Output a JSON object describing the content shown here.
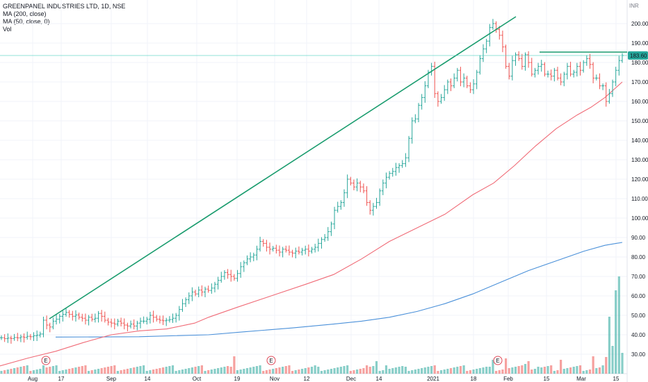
{
  "legend": {
    "title": "GREENPANEL INDUSTRIES LTD, 1D, NSE",
    "ma200": "MA (200, close)",
    "ma50": "MA (50, close, 0)",
    "vol": "Vol"
  },
  "currency_label": "INR",
  "last_price_label": "183.60",
  "colors": {
    "up": "#26a69a",
    "down": "#ef5350",
    "ma50": "#f06b77",
    "ma200": "#4a90d9",
    "trendline": "#1a9c6e",
    "price_line": "#4dd0c0",
    "earnings": "#e04b5a"
  },
  "chart_data": {
    "type": "line",
    "title": "GREENPANEL INDUSTRIES LTD, 1D, NSE",
    "ylim": [
      22,
      205
    ],
    "y_ticks": [
      "30.00",
      "40.00",
      "50.00",
      "60.00",
      "70.00",
      "80.00",
      "90.00",
      "100.00",
      "110.00",
      "120.00",
      "130.00",
      "140.00",
      "150.00",
      "160.00",
      "170.00",
      "180.00",
      "190.00",
      "200.00"
    ],
    "x_ticks": [
      "Aug",
      "17",
      "Sep",
      "14",
      "Oct",
      "19",
      "Nov",
      "12",
      "Dec",
      "14",
      "2021",
      "18",
      "Feb",
      "15",
      "Mar",
      "15"
    ],
    "earnings_markers": [
      "E",
      "E",
      "E"
    ],
    "close_series": [
      38.5,
      38,
      38.3,
      38.1,
      38.6,
      38.4,
      38.9,
      38.7,
      39.2,
      39,
      39.5,
      39.8,
      40.4,
      47.5,
      45,
      44,
      47,
      48,
      49.5,
      50.5,
      51.5,
      50.5,
      49.5,
      50.2,
      49,
      48.5,
      47.5,
      49,
      48,
      48.5,
      51,
      49.5,
      47.5,
      46.5,
      46,
      45.5,
      47,
      46,
      45,
      44.5,
      45.5,
      44.5,
      46,
      47,
      47,
      48,
      50,
      49,
      48,
      47.5,
      47.2,
      47.5,
      47.8,
      48.5,
      50,
      53,
      56,
      58,
      60,
      62,
      61,
      63,
      62,
      63.5,
      62.8,
      64,
      66,
      68,
      70,
      72,
      71,
      70,
      69,
      71.5,
      75,
      77,
      79,
      80,
      81,
      84,
      88,
      87,
      85,
      84,
      84.5,
      83.5,
      82.5,
      84,
      83.5,
      82.5,
      82,
      83,
      82.5,
      83.5,
      84,
      83,
      84,
      85,
      87,
      89,
      90,
      93,
      97,
      104,
      106,
      108,
      113,
      120,
      118,
      116,
      118,
      116,
      114,
      108,
      104,
      106,
      108,
      114,
      118,
      121,
      123,
      124,
      126,
      127,
      128,
      131,
      141,
      150,
      151,
      158,
      162,
      168,
      175,
      178,
      164,
      160,
      162,
      166,
      170,
      168,
      172,
      176,
      170,
      172,
      168,
      166,
      169,
      175,
      182,
      187,
      191,
      198,
      200,
      197,
      194,
      188,
      178,
      173,
      181,
      184,
      182,
      178,
      184,
      180,
      174,
      176,
      178,
      179,
      174,
      174,
      173,
      176,
      172,
      170,
      174,
      178,
      174,
      175,
      178,
      176,
      180,
      182,
      179,
      172,
      172,
      168,
      168,
      160,
      164,
      170,
      176,
      181,
      183.6
    ],
    "ma50_series": [
      [
        0,
        24
      ],
      [
        40,
        28
      ],
      [
        80,
        31.5
      ],
      [
        120,
        36
      ],
      [
        160,
        40
      ],
      [
        200,
        42
      ],
      [
        240,
        43
      ],
      [
        280,
        46
      ],
      [
        300,
        49
      ],
      [
        340,
        54
      ],
      [
        390,
        60
      ],
      [
        440,
        66
      ],
      [
        480,
        71
      ],
      [
        520,
        79
      ],
      [
        560,
        88
      ],
      [
        600,
        95
      ],
      [
        640,
        102
      ],
      [
        680,
        112
      ],
      [
        710,
        118
      ],
      [
        740,
        127
      ],
      [
        770,
        137
      ],
      [
        800,
        146
      ],
      [
        830,
        153
      ],
      [
        850,
        157
      ],
      [
        870,
        162
      ],
      [
        895,
        170
      ]
    ],
    "ma200_series": [
      [
        80,
        38.8
      ],
      [
        200,
        39
      ],
      [
        300,
        40
      ],
      [
        350,
        41.5
      ],
      [
        420,
        43.5
      ],
      [
        480,
        45.5
      ],
      [
        520,
        47
      ],
      [
        560,
        49
      ],
      [
        600,
        52
      ],
      [
        640,
        56
      ],
      [
        680,
        61
      ],
      [
        720,
        67
      ],
      [
        760,
        73
      ],
      [
        800,
        78
      ],
      [
        840,
        83
      ],
      [
        870,
        86
      ],
      [
        895,
        87.5
      ]
    ],
    "volume_series": [
      1,
      1,
      1,
      1,
      1,
      1,
      1,
      1,
      1,
      1,
      1,
      1,
      1,
      1,
      1,
      1,
      1,
      1,
      1,
      1,
      1,
      1,
      1,
      1,
      1,
      1,
      1,
      1,
      1,
      1,
      1,
      1,
      1,
      1,
      1,
      1,
      1,
      1,
      1,
      1,
      1,
      1,
      1,
      1,
      1,
      1,
      1,
      1,
      1,
      1,
      1,
      1,
      1,
      1,
      1,
      1,
      1,
      1,
      1,
      1,
      1,
      1,
      1,
      1,
      1,
      1,
      1,
      1,
      1,
      1,
      1,
      1,
      1,
      1,
      1,
      1,
      1,
      1,
      1,
      1,
      1,
      1,
      1,
      1,
      1,
      1,
      1,
      1,
      1,
      1,
      1,
      1,
      1,
      1,
      1,
      1,
      1,
      1,
      1,
      1,
      1,
      1,
      1,
      1,
      1,
      1,
      1,
      1,
      1,
      1,
      1,
      1,
      1,
      1,
      1,
      1,
      1,
      1,
      1,
      1,
      1,
      1,
      1,
      1,
      1,
      1,
      1,
      1,
      1,
      1,
      1,
      1,
      1,
      1,
      1,
      1,
      1,
      1,
      1,
      1,
      1,
      1,
      1,
      1,
      1,
      1,
      1,
      1,
      1,
      1,
      1,
      1,
      1,
      1,
      1,
      1,
      1,
      1,
      1,
      1,
      1,
      1,
      1,
      1,
      1,
      1,
      1,
      1,
      1,
      1,
      1,
      1,
      1,
      1,
      1,
      1,
      1,
      1,
      1,
      1,
      1,
      1,
      1,
      1,
      1,
      1,
      1,
      1,
      1,
      1
    ]
  }
}
